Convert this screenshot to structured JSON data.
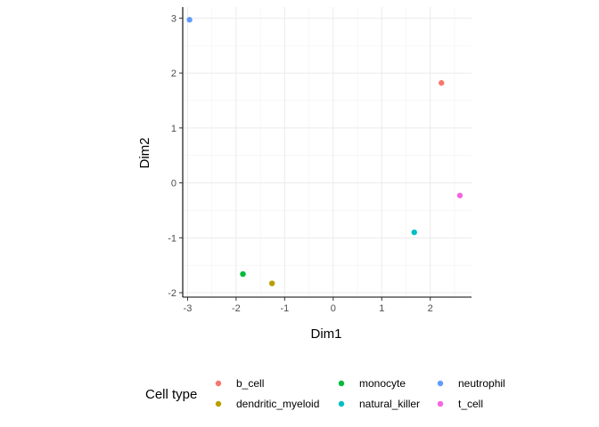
{
  "chart_data": {
    "type": "scatter",
    "title": "",
    "xlabel": "Dim1",
    "ylabel": "Dim2",
    "xlim": [
      -3.1,
      2.85
    ],
    "ylim": [
      -2.08,
      3.2
    ],
    "xticks": [
      -3,
      -2,
      -1,
      0,
      1,
      2
    ],
    "yticks": [
      -2,
      -1,
      0,
      1,
      2,
      3
    ],
    "grid": true,
    "legend_position": "bottom",
    "legend_title": "Cell type",
    "series": [
      {
        "name": "b_cell",
        "color": "#F8766D",
        "x": [
          2.23
        ],
        "y": [
          1.82
        ]
      },
      {
        "name": "dendritic_myeloid",
        "color": "#B79F00",
        "x": [
          -1.26
        ],
        "y": [
          -1.83
        ]
      },
      {
        "name": "monocyte",
        "color": "#00BA38",
        "x": [
          -1.86
        ],
        "y": [
          -1.66
        ]
      },
      {
        "name": "natural_killer",
        "color": "#00BFC4",
        "x": [
          1.67
        ],
        "y": [
          -0.9
        ]
      },
      {
        "name": "neutrophil",
        "color": "#619CFF",
        "x": [
          -2.96
        ],
        "y": [
          2.97
        ]
      },
      {
        "name": "t_cell",
        "color": "#F564E3",
        "x": [
          2.61
        ],
        "y": [
          -0.23
        ]
      }
    ]
  }
}
